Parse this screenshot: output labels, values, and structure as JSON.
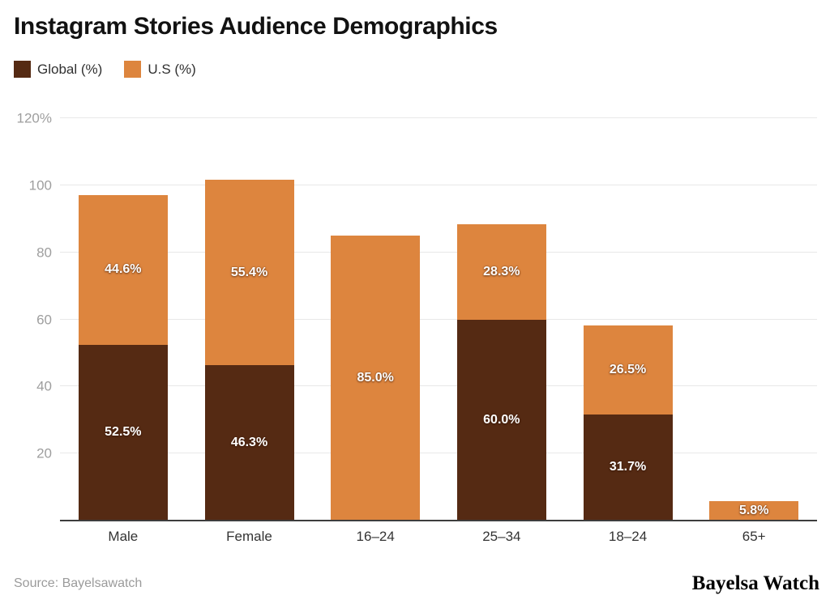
{
  "header": {
    "title": "Instagram Stories Audience Demographics"
  },
  "chart_data": {
    "type": "bar",
    "stacked": true,
    "title": "Instagram Stories Audience Demographics",
    "categories": [
      "Male",
      "Female",
      "16–24",
      "25–34",
      "18–24",
      "65+"
    ],
    "series": [
      {
        "name": "Global (%)",
        "color": "#552A13",
        "values": [
          52.5,
          46.3,
          null,
          60.0,
          31.7,
          null
        ]
      },
      {
        "name": "U.S (%)",
        "color": "#DD853E",
        "values": [
          44.6,
          55.4,
          85.0,
          28.3,
          26.5,
          5.8
        ]
      }
    ],
    "ylim": [
      0,
      120
    ],
    "y_axis": {
      "ticks": [
        {
          "value": 20,
          "label": "20"
        },
        {
          "value": 40,
          "label": "40"
        },
        {
          "value": 60,
          "label": "60"
        },
        {
          "value": 80,
          "label": "80"
        },
        {
          "value": 100,
          "label": "100"
        },
        {
          "value": 120,
          "label": "120%"
        }
      ]
    },
    "grid": true,
    "legend_position": "top-left",
    "value_label_format": "one-decimal-percent"
  },
  "footer": {
    "source": "Source: Bayelsawatch",
    "brand": "Bayelsa Watch"
  },
  "colors": {
    "global_series": "#552A13",
    "us_series": "#DD853E",
    "grid_line": "#e8e8e8",
    "axis_line": "#3d3d3d",
    "y_tick_text": "#9e9e9e",
    "x_tick_text": "#333333",
    "title_text": "#121212",
    "source_text": "#9b9b9b"
  }
}
